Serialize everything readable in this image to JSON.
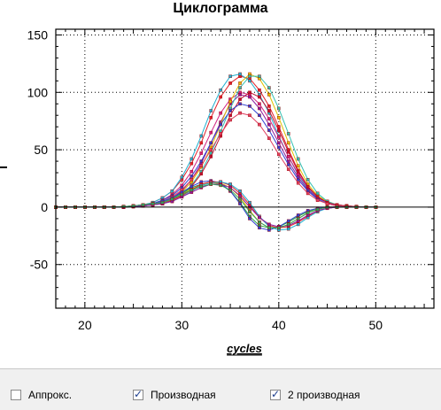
{
  "chart_data": {
    "type": "line",
    "title": "Циклограмма",
    "xlabel": "cycles",
    "ylabel": "",
    "xlim": [
      17,
      56
    ],
    "ylim": [
      -88,
      155
    ],
    "xticks": [
      20,
      30,
      40,
      50
    ],
    "yticks": [
      150,
      100,
      50,
      0,
      -50
    ],
    "grid": true,
    "x": [
      17,
      18,
      19,
      20,
      21,
      22,
      23,
      24,
      25,
      26,
      27,
      28,
      29,
      30,
      31,
      32,
      33,
      34,
      35,
      36,
      37,
      38,
      39,
      40,
      41,
      42,
      43,
      44,
      45,
      46,
      47,
      48,
      49,
      50
    ],
    "series": [
      {
        "color": "#e0202a",
        "values": [
          0,
          0,
          0,
          0,
          0,
          0,
          0,
          0.5,
          1,
          2,
          4,
          8,
          14,
          24,
          38,
          56,
          78,
          96,
          108,
          114,
          112,
          102,
          88,
          70,
          50,
          32,
          18,
          9,
          4,
          2,
          1,
          0.5,
          0,
          0
        ]
      },
      {
        "color": "#20b0d0",
        "values": [
          0,
          0,
          0,
          0,
          0,
          0,
          0,
          0.5,
          1,
          2,
          4,
          8,
          14,
          26,
          42,
          62,
          84,
          102,
          114,
          116,
          110,
          98,
          82,
          62,
          44,
          28,
          16,
          8,
          4,
          2,
          1,
          0.5,
          0,
          0
        ]
      },
      {
        "color": "#d02080",
        "values": [
          0,
          0,
          0,
          0,
          0,
          0,
          0,
          0.5,
          1,
          2,
          3,
          6,
          11,
          19,
          31,
          47,
          65,
          82,
          94,
          100,
          98,
          90,
          77,
          61,
          44,
          29,
          17,
          9,
          4,
          2,
          1,
          0.5,
          0,
          0
        ]
      },
      {
        "color": "#8a1aa0",
        "values": [
          0,
          0,
          0,
          0,
          0,
          0,
          0,
          0,
          0.5,
          1,
          2,
          4,
          8,
          14,
          24,
          38,
          56,
          74,
          90,
          98,
          96,
          86,
          72,
          56,
          40,
          26,
          15,
          8,
          4,
          2,
          1,
          0.5,
          0,
          0
        ]
      },
      {
        "color": "#e0c000",
        "values": [
          0,
          0,
          0,
          0,
          0,
          0,
          0,
          0,
          0.5,
          1,
          2,
          4,
          7,
          13,
          22,
          35,
          52,
          72,
          92,
          108,
          116,
          112,
          98,
          78,
          56,
          36,
          20,
          10,
          5,
          2,
          1,
          0.5,
          0,
          0
        ]
      },
      {
        "color": "#30c0b0",
        "values": [
          0,
          0,
          0,
          0,
          0,
          0,
          0,
          0,
          0.5,
          1,
          2,
          3,
          6,
          11,
          19,
          31,
          47,
          66,
          86,
          104,
          114,
          114,
          104,
          86,
          64,
          42,
          24,
          12,
          5,
          2,
          1,
          0.5,
          0,
          0
        ]
      },
      {
        "color": "#c01030",
        "values": [
          0,
          0,
          0,
          0,
          0,
          0,
          0,
          0,
          0.5,
          1,
          2,
          3,
          6,
          11,
          18,
          29,
          44,
          62,
          80,
          94,
          100,
          96,
          84,
          67,
          48,
          31,
          18,
          9,
          4,
          2,
          1,
          0.5,
          0,
          0
        ]
      },
      {
        "color": "#3040d0",
        "values": [
          0,
          0,
          0,
          0,
          0,
          0,
          0,
          0.5,
          1,
          2,
          3,
          6,
          10,
          17,
          27,
          40,
          56,
          72,
          84,
          90,
          88,
          80,
          67,
          52,
          37,
          24,
          14,
          7,
          3,
          1,
          0.5,
          0,
          0,
          0
        ]
      },
      {
        "color": "#e04060",
        "values": [
          0,
          0,
          0,
          0,
          0,
          0,
          0,
          0.5,
          1,
          2,
          3,
          5,
          9,
          15,
          24,
          36,
          50,
          64,
          76,
          82,
          80,
          72,
          60,
          46,
          33,
          21,
          12,
          6,
          3,
          1,
          0.5,
          0,
          0,
          0
        ]
      },
      {
        "color": "#20a040",
        "values": [
          0,
          0,
          0,
          0,
          0,
          0,
          0,
          0.5,
          1,
          2,
          3,
          5,
          8,
          12,
          17,
          20,
          22,
          20,
          14,
          4,
          -8,
          -16,
          -18,
          -17,
          -13,
          -8,
          -4,
          -1,
          0,
          0,
          0,
          0,
          0,
          0
        ]
      },
      {
        "color": "#e0c000",
        "values": [
          0,
          0,
          0,
          0,
          0,
          0,
          0,
          0.5,
          1,
          2,
          3,
          4,
          7,
          11,
          16,
          19,
          21,
          21,
          17,
          9,
          -3,
          -13,
          -18,
          -18,
          -15,
          -10,
          -5,
          -2,
          0,
          0,
          0,
          0,
          0,
          0
        ]
      },
      {
        "color": "#3040d0",
        "values": [
          0,
          0,
          0,
          0,
          0,
          0,
          0,
          0.5,
          1,
          2,
          3,
          5,
          8,
          13,
          18,
          22,
          23,
          21,
          14,
          3,
          -10,
          -18,
          -20,
          -17,
          -12,
          -7,
          -3,
          -1,
          0,
          0,
          0,
          0,
          0,
          0
        ]
      },
      {
        "color": "#e0202a",
        "values": [
          0,
          0,
          0,
          0,
          0,
          0,
          0,
          0,
          0.5,
          1,
          2,
          3,
          6,
          10,
          15,
          20,
          22,
          22,
          19,
          12,
          2,
          -9,
          -16,
          -18,
          -17,
          -13,
          -8,
          -3,
          -1,
          0,
          0,
          0,
          0,
          0
        ]
      },
      {
        "color": "#20b0d0",
        "values": [
          0,
          0,
          0,
          0,
          0,
          0,
          0,
          0,
          0.5,
          1,
          2,
          3,
          5,
          9,
          14,
          19,
          21,
          22,
          20,
          14,
          4,
          -8,
          -17,
          -20,
          -19,
          -15,
          -9,
          -4,
          -1,
          0,
          0,
          0,
          0,
          0
        ]
      },
      {
        "color": "#8a1aa0",
        "values": [
          0,
          0,
          0,
          0,
          0,
          0,
          0,
          0,
          0.5,
          1,
          2,
          3,
          5,
          9,
          13,
          17,
          20,
          20,
          17,
          10,
          0,
          -9,
          -15,
          -17,
          -16,
          -12,
          -7,
          -3,
          -1,
          0,
          0,
          0,
          0,
          0
        ]
      },
      {
        "color": "#30a060",
        "values": [
          0,
          0,
          0,
          0,
          0,
          0,
          0,
          0.5,
          1,
          2,
          3,
          4,
          7,
          11,
          15,
          18,
          20,
          19,
          15,
          7,
          -4,
          -13,
          -18,
          -18,
          -15,
          -10,
          -5,
          -2,
          0,
          0,
          0,
          0,
          0,
          0
        ]
      }
    ]
  },
  "options": {
    "approx_label": "Аппрокс.",
    "approx_checked": false,
    "derivative_label": "Производная",
    "derivative_checked": true,
    "second_derivative_label": "2 производная",
    "second_derivative_checked": true
  }
}
